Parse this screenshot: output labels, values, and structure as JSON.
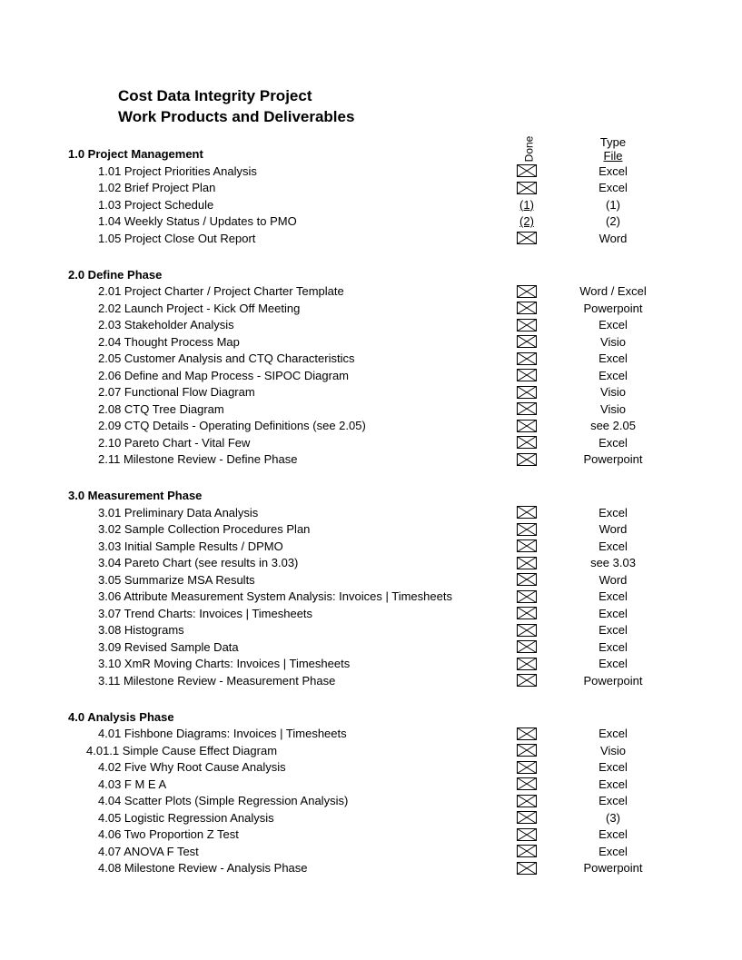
{
  "title": {
    "line1": "Cost Data Integrity Project",
    "line2": "Work Products and Deliverables"
  },
  "columns": {
    "done": "Done",
    "type": "Type",
    "file": "File"
  },
  "sections": [
    {
      "heading": "1.0 Project Management",
      "items": [
        {
          "num": "1.01",
          "label": "Project Priorities Analysis",
          "done": "x",
          "type": "Excel",
          "indent": 0
        },
        {
          "num": "1.02",
          "label": "Brief Project Plan",
          "done": "x",
          "type": "Excel",
          "indent": 0
        },
        {
          "num": "1.03",
          "label": "Project Schedule",
          "done": "(1)",
          "type": "(1)",
          "indent": 0
        },
        {
          "num": "1.04",
          "label": "Weekly Status / Updates to PMO",
          "done": "(2)",
          "type": "(2)",
          "indent": 0
        },
        {
          "num": "1.05",
          "label": "Project Close Out Report",
          "done": "x",
          "type": "Word",
          "indent": 0
        }
      ]
    },
    {
      "heading": "2.0 Define Phase",
      "items": [
        {
          "num": "2.01",
          "label": "Project Charter / Project Charter Template",
          "done": "x",
          "type": "Word / Excel",
          "indent": 0
        },
        {
          "num": "2.02",
          "label": "Launch Project - Kick Off Meeting",
          "done": "x",
          "type": "Powerpoint",
          "indent": 0
        },
        {
          "num": "2.03",
          "label": "Stakeholder Analysis",
          "done": "x",
          "type": "Excel",
          "indent": 0
        },
        {
          "num": "2.04",
          "label": "Thought Process Map",
          "done": "x",
          "type": "Visio",
          "indent": 0
        },
        {
          "num": "2.05",
          "label": "Customer Analysis and CTQ Characteristics",
          "done": "x",
          "type": "Excel",
          "indent": 0
        },
        {
          "num": "2.06",
          "label": "Define and Map Process - SIPOC Diagram",
          "done": "x",
          "type": "Excel",
          "indent": 0
        },
        {
          "num": "2.07",
          "label": "Functional Flow Diagram",
          "done": "x",
          "type": "Visio",
          "indent": 0
        },
        {
          "num": "2.08",
          "label": "CTQ Tree Diagram",
          "done": "x",
          "type": "Visio",
          "indent": 0
        },
        {
          "num": "2.09",
          "label": "CTQ Details - Operating Definitions (see 2.05)",
          "done": "x",
          "type": "see 2.05",
          "indent": 0
        },
        {
          "num": "2.10",
          "label": "Pareto Chart - Vital Few",
          "done": "x",
          "type": "Excel",
          "indent": 0
        },
        {
          "num": "2.11",
          "label": "Milestone Review - Define Phase",
          "done": "x",
          "type": "Powerpoint",
          "indent": 0
        }
      ]
    },
    {
      "heading": "3.0 Measurement Phase",
      "items": [
        {
          "num": "3.01",
          "label": "Preliminary Data Analysis",
          "done": "x",
          "type": "Excel",
          "indent": 0
        },
        {
          "num": "3.02",
          "label": "Sample Collection Procedures Plan",
          "done": "x",
          "type": "Word",
          "indent": 0
        },
        {
          "num": "3.03",
          "label": "Initial Sample Results / DPMO",
          "done": "x",
          "type": "Excel",
          "indent": 0
        },
        {
          "num": "3.04",
          "label": "Pareto Chart (see results in 3.03)",
          "done": "x",
          "type": "see 3.03",
          "indent": 0
        },
        {
          "num": "3.05",
          "label": "Summarize MSA Results",
          "done": "x",
          "type": "Word",
          "indent": 0
        },
        {
          "num": "3.06",
          "label": "Attribute Measurement System Analysis: Invoices | Timesheets",
          "done": "x",
          "type": "Excel",
          "indent": 0
        },
        {
          "num": "3.07",
          "label": "Trend Charts: Invoices | Timesheets",
          "done": "x",
          "type": "Excel",
          "indent": 0
        },
        {
          "num": "3.08",
          "label": "Histograms",
          "done": "x",
          "type": "Excel",
          "indent": 0
        },
        {
          "num": "3.09",
          "label": "Revised Sample Data",
          "done": "x",
          "type": "Excel",
          "indent": 0
        },
        {
          "num": "3.10",
          "label": "XmR Moving Charts: Invoices | Timesheets",
          "done": "x",
          "type": "Excel",
          "indent": 0
        },
        {
          "num": "3.11",
          "label": "Milestone Review - Measurement Phase",
          "done": "x",
          "type": "Powerpoint",
          "indent": 0
        }
      ]
    },
    {
      "heading": "4.0 Analysis Phase",
      "items": [
        {
          "num": "4.01",
          "label": "Fishbone Diagrams: Invoices | Timesheets",
          "done": "x",
          "type": "Excel",
          "indent": 0
        },
        {
          "num": "4.01.1",
          "label": "Simple Cause Effect Diagram",
          "done": "x",
          "type": "Visio",
          "indent": 1
        },
        {
          "num": "4.02",
          "label": "Five Why Root Cause Analysis",
          "done": "x",
          "type": "Excel",
          "indent": 0
        },
        {
          "num": "4.03",
          "label": "F M E A",
          "done": "x",
          "type": "Excel",
          "indent": 0
        },
        {
          "num": "4.04",
          "label": "Scatter Plots (Simple Regression Analysis)",
          "done": "x",
          "type": "Excel",
          "indent": 0
        },
        {
          "num": "4.05",
          "label": "Logistic Regression Analysis",
          "done": "x",
          "type": "(3)",
          "indent": 0
        },
        {
          "num": "4.06",
          "label": "Two Proportion Z Test",
          "done": "x",
          "type": "Excel",
          "indent": 0
        },
        {
          "num": "4.07",
          "label": "ANOVA F Test",
          "done": "x",
          "type": "Excel",
          "indent": 0
        },
        {
          "num": "4.08",
          "label": "Milestone Review - Analysis Phase",
          "done": "x",
          "type": "Powerpoint",
          "indent": 0
        }
      ]
    }
  ]
}
